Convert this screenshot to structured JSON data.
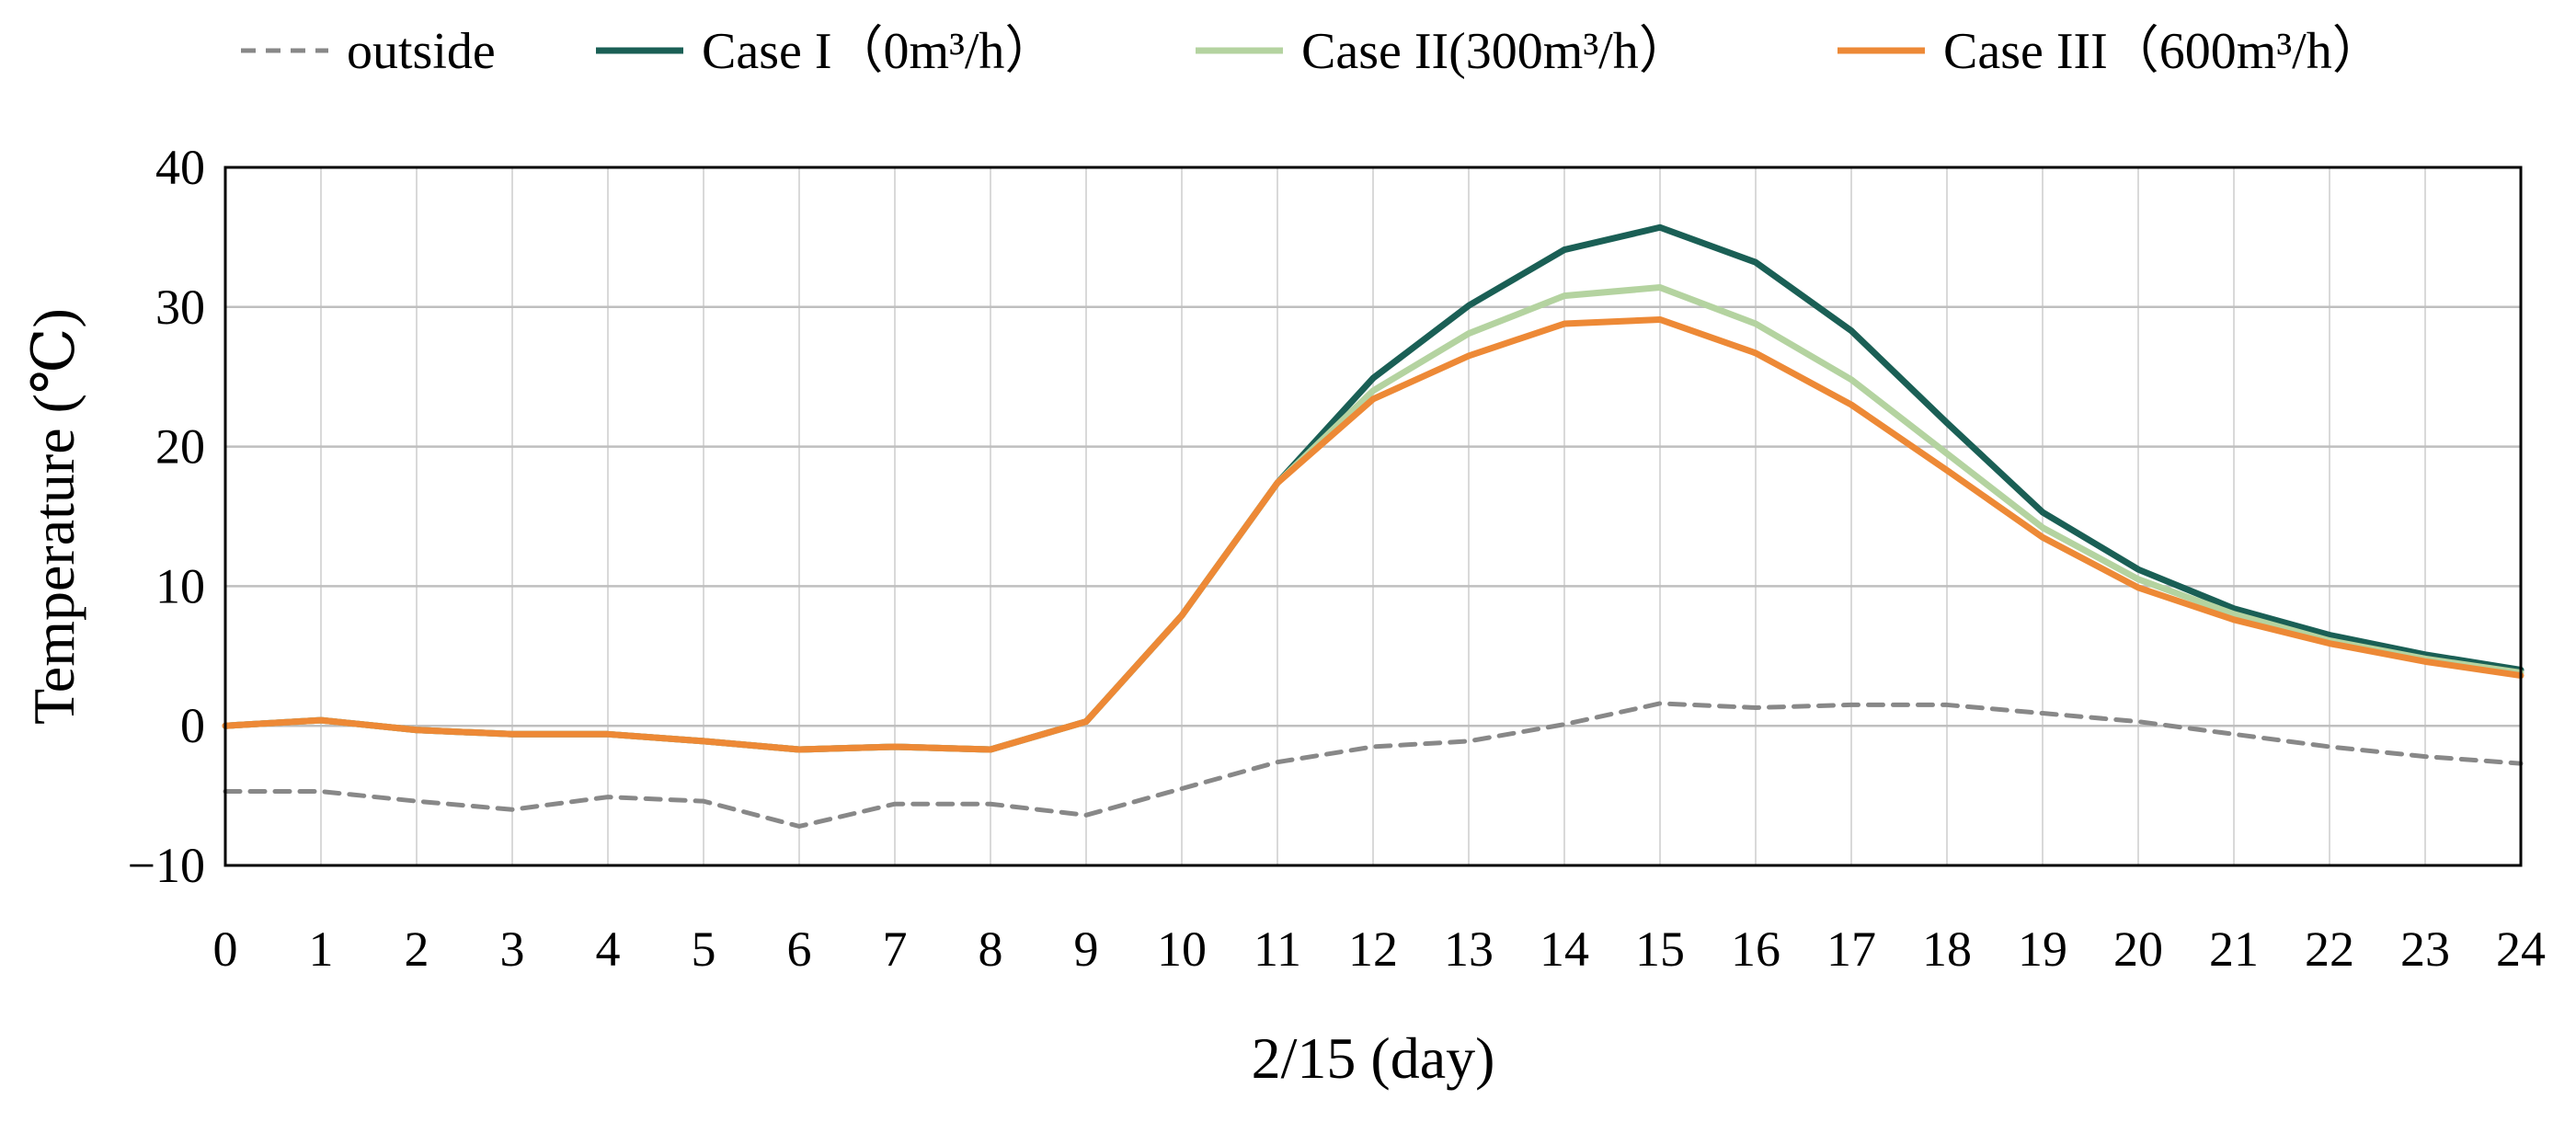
{
  "chart_data": {
    "type": "line",
    "title": "",
    "xlabel": "2/15 (day)",
    "ylabel": "Temperature (℃)",
    "xlim": [
      0,
      24
    ],
    "ylim": [
      -10,
      40
    ],
    "grid": true,
    "legend_position": "top",
    "x": [
      0,
      1,
      2,
      3,
      4,
      5,
      6,
      7,
      8,
      9,
      10,
      11,
      12,
      13,
      14,
      15,
      16,
      17,
      18,
      19,
      20,
      21,
      22,
      23,
      24
    ],
    "x_tick_labels": [
      "0",
      "1",
      "2",
      "3",
      "4",
      "5",
      "6",
      "7",
      "8",
      "9",
      "10",
      "11",
      "12",
      "13",
      "14",
      "15",
      "16",
      "17",
      "18",
      "19",
      "20",
      "21",
      "22",
      "23",
      "24"
    ],
    "y_ticks": [
      40,
      30,
      20,
      10,
      0,
      -10
    ],
    "y_tick_labels": [
      "40",
      "30",
      "20",
      "10",
      "0",
      "−10"
    ],
    "series": [
      {
        "name": "outside",
        "color": "#888888",
        "style": "dashed",
        "values": [
          -4.7,
          -4.7,
          -5.4,
          -6.0,
          -5.1,
          -5.4,
          -7.2,
          -5.6,
          -5.6,
          -6.4,
          -4.5,
          -2.6,
          -1.5,
          -1.1,
          0.1,
          1.6,
          1.3,
          1.5,
          1.5,
          0.9,
          0.3,
          -0.6,
          -1.5,
          -2.2,
          -2.7
        ]
      },
      {
        "name": "Case I（0m³/h）",
        "color": "#1a5f55",
        "style": "solid",
        "values": [
          0.0,
          0.4,
          -0.3,
          -0.6,
          -0.6,
          -1.1,
          -1.7,
          -1.5,
          -1.7,
          0.3,
          7.9,
          17.4,
          24.9,
          30.1,
          34.1,
          35.7,
          33.2,
          28.3,
          21.7,
          15.3,
          11.2,
          8.4,
          6.5,
          5.1,
          4.0
        ]
      },
      {
        "name": "Case II(300m³/h）",
        "color": "#b4d3a0",
        "style": "solid",
        "values": [
          0.0,
          0.4,
          -0.3,
          -0.6,
          -0.6,
          -1.1,
          -1.7,
          -1.5,
          -1.7,
          0.3,
          7.9,
          17.4,
          24.0,
          28.1,
          30.8,
          31.4,
          28.8,
          24.8,
          19.5,
          14.2,
          10.5,
          8.0,
          6.1,
          4.8,
          3.8
        ]
      },
      {
        "name": "Case III（600m³/h）",
        "color": "#ed8936",
        "style": "solid",
        "values": [
          0.0,
          0.4,
          -0.3,
          -0.6,
          -0.6,
          -1.1,
          -1.7,
          -1.5,
          -1.7,
          0.3,
          7.9,
          17.4,
          23.4,
          26.5,
          28.8,
          29.1,
          26.7,
          23.0,
          18.3,
          13.5,
          9.9,
          7.6,
          5.9,
          4.6,
          3.6
        ]
      }
    ]
  }
}
